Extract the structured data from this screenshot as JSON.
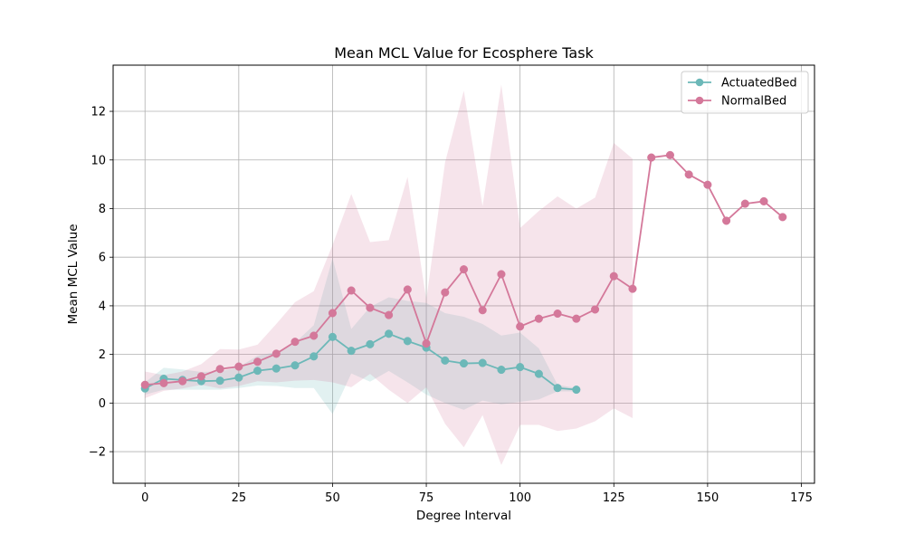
{
  "chart_data": {
    "type": "line",
    "title": "Mean MCL Value for Ecosphere Task",
    "xlabel": "Degree Interval",
    "ylabel": "Mean MCL Value",
    "xlim": [
      -8.5,
      178.5
    ],
    "ylim": [
      -3.3,
      13.9
    ],
    "xticks": [
      0,
      25,
      50,
      75,
      100,
      125,
      150,
      175
    ],
    "yticks": [
      -2,
      0,
      2,
      4,
      6,
      8,
      10,
      12
    ],
    "grid": true,
    "legend_position": "top-right",
    "series": [
      {
        "name": "ActuatedBed",
        "color": "#6cb8b8",
        "x": [
          0,
          5,
          10,
          15,
          20,
          25,
          30,
          35,
          40,
          45,
          50,
          55,
          60,
          65,
          70,
          75,
          80,
          85,
          90,
          95,
          100,
          105,
          110,
          115
        ],
        "y": [
          0.6,
          1.0,
          0.95,
          0.9,
          0.92,
          1.05,
          1.33,
          1.42,
          1.55,
          1.92,
          2.72,
          2.15,
          2.42,
          2.85,
          2.55,
          2.28,
          1.75,
          1.63,
          1.65,
          1.37,
          1.48,
          1.2,
          0.62,
          0.55
        ],
        "lower": [
          0.35,
          0.55,
          0.55,
          0.55,
          0.55,
          0.62,
          0.72,
          0.7,
          0.62,
          0.62,
          -0.45,
          1.22,
          0.88,
          1.32,
          0.85,
          0.35,
          0.0,
          -0.28,
          0.1,
          -0.05,
          0.05,
          0.15,
          0.48,
          0.48
        ],
        "upper": [
          0.85,
          1.45,
          1.38,
          1.28,
          1.3,
          1.48,
          1.95,
          2.1,
          2.48,
          3.2,
          5.95,
          3.05,
          3.95,
          4.35,
          4.2,
          4.12,
          3.7,
          3.55,
          3.25,
          2.78,
          2.9,
          2.25,
          0.75,
          0.62
        ]
      },
      {
        "name": "NormalBed",
        "color": "#d4789a",
        "x": [
          0,
          5,
          10,
          15,
          20,
          25,
          30,
          35,
          40,
          45,
          50,
          55,
          60,
          65,
          70,
          75,
          80,
          85,
          90,
          95,
          100,
          105,
          110,
          115,
          120,
          125,
          130,
          135,
          140,
          145,
          150,
          155,
          160,
          165,
          170
        ],
        "y": [
          0.75,
          0.82,
          0.9,
          1.1,
          1.4,
          1.5,
          1.7,
          2.03,
          2.52,
          2.77,
          3.7,
          4.63,
          3.92,
          3.62,
          4.67,
          2.45,
          4.55,
          5.5,
          3.82,
          5.3,
          3.15,
          3.47,
          3.68,
          3.47,
          3.85,
          5.22,
          4.7,
          10.1,
          10.2,
          9.4,
          8.98,
          7.5,
          8.2,
          8.3,
          7.65
        ],
        "lower": [
          0.2,
          0.5,
          0.6,
          0.75,
          0.6,
          0.7,
          0.9,
          0.85,
          0.92,
          0.95,
          0.85,
          0.65,
          1.2,
          0.55,
          0.0,
          0.65,
          -0.85,
          -1.82,
          -0.5,
          -2.55,
          -0.9,
          -0.9,
          -1.15,
          -1.05,
          -0.75,
          -0.22,
          -0.62,
          null,
          null,
          null,
          null,
          null,
          null,
          null,
          null
        ],
        "upper": [
          1.3,
          1.15,
          1.3,
          1.6,
          2.22,
          2.2,
          2.4,
          3.25,
          4.15,
          4.6,
          6.5,
          8.6,
          6.62,
          6.7,
          9.3,
          4.25,
          9.9,
          12.85,
          8.1,
          13.1,
          7.2,
          7.9,
          8.5,
          8.0,
          8.45,
          10.7,
          10.05,
          null,
          null,
          null,
          null,
          null,
          null,
          null,
          null
        ]
      }
    ]
  }
}
